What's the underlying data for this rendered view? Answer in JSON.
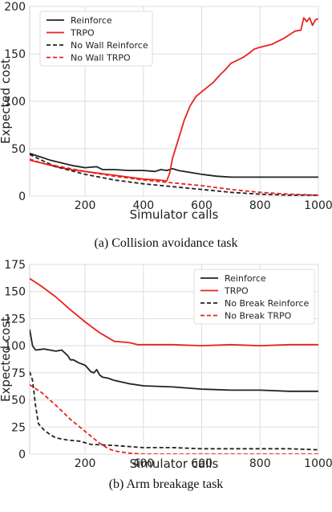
{
  "chart_data": [
    {
      "type": "line",
      "caption": "(a) Collision avoidance task",
      "xlabel": "Simulator calls",
      "ylabel": "Expected cost",
      "xlim": [
        10,
        1000
      ],
      "ylim": [
        0,
        200
      ],
      "xticks": [
        200,
        400,
        600,
        800,
        1000
      ],
      "yticks": [
        0,
        50,
        100,
        150,
        200
      ],
      "grid": true,
      "legend_position": "top-left",
      "series": [
        {
          "name": "Reinforce",
          "color": "#222222",
          "dash": "solid",
          "x": [
            10,
            40,
            80,
            120,
            160,
            200,
            240,
            260,
            300,
            350,
            400,
            440,
            460,
            480,
            500,
            520,
            560,
            600,
            650,
            700,
            800,
            900,
            1000
          ],
          "y": [
            45,
            42,
            38,
            35,
            32,
            30,
            31,
            28,
            28,
            27,
            27,
            26,
            28,
            27,
            29,
            27,
            25,
            23,
            21,
            20,
            20,
            20,
            20
          ]
        },
        {
          "name": "TRPO",
          "color": "#e8231e",
          "dash": "solid",
          "x": [
            10,
            50,
            100,
            150,
            200,
            250,
            300,
            350,
            400,
            450,
            480,
            490,
            500,
            520,
            540,
            560,
            580,
            600,
            620,
            640,
            660,
            680,
            700,
            720,
            740,
            760,
            780,
            800,
            840,
            880,
            900,
            920,
            940,
            950,
            960,
            970,
            980,
            990,
            1000
          ],
          "y": [
            38,
            35,
            31,
            28,
            26,
            24,
            22,
            20,
            18,
            17,
            16,
            24,
            40,
            60,
            80,
            95,
            105,
            110,
            115,
            120,
            127,
            133,
            140,
            143,
            146,
            150,
            155,
            157,
            160,
            166,
            170,
            174,
            175,
            188,
            184,
            188,
            180,
            186,
            187
          ]
        },
        {
          "name": "No Wall Reinforce",
          "color": "#222222",
          "dash": "dashed",
          "x": [
            10,
            50,
            100,
            150,
            200,
            250,
            300,
            400,
            500,
            600,
            700,
            800,
            900,
            1000
          ],
          "y": [
            44,
            38,
            31,
            27,
            23,
            20,
            17,
            13,
            10,
            7,
            4,
            2,
            1,
            1
          ]
        },
        {
          "name": "No Wall TRPO",
          "color": "#e8231e",
          "dash": "dashed",
          "x": [
            10,
            50,
            100,
            150,
            200,
            300,
            400,
            500,
            600,
            700,
            800,
            900,
            1000
          ],
          "y": [
            39,
            35,
            32,
            29,
            26,
            21,
            17,
            14,
            11,
            7,
            4,
            2,
            1
          ]
        }
      ]
    },
    {
      "type": "line",
      "caption": "(b) Arm breakage task",
      "xlabel": "Simulator calls",
      "ylabel": "Expected cost",
      "xlim": [
        10,
        1000
      ],
      "ylim": [
        0,
        175
      ],
      "xticks": [
        200,
        400,
        600,
        800,
        1000
      ],
      "yticks": [
        0,
        25,
        50,
        75,
        100,
        125,
        150,
        175
      ],
      "grid": true,
      "legend_position": "top-right",
      "series": [
        {
          "name": "Reinforce",
          "color": "#222222",
          "dash": "solid",
          "x": [
            10,
            20,
            30,
            60,
            100,
            120,
            140,
            150,
            160,
            180,
            200,
            220,
            230,
            240,
            250,
            260,
            280,
            300,
            350,
            400,
            500,
            600,
            700,
            800,
            900,
            1000
          ],
          "y": [
            115,
            100,
            96,
            97,
            95,
            96,
            91,
            87,
            87,
            84,
            82,
            76,
            75,
            78,
            73,
            71,
            70,
            68,
            65,
            63,
            62,
            60,
            59,
            59,
            58,
            58
          ]
        },
        {
          "name": "TRPO",
          "color": "#e8231e",
          "dash": "solid",
          "x": [
            10,
            50,
            100,
            150,
            200,
            250,
            300,
            350,
            380,
            400,
            500,
            600,
            700,
            800,
            900,
            1000
          ],
          "y": [
            162,
            155,
            145,
            133,
            122,
            112,
            104,
            103,
            101,
            101,
            101,
            100,
            101,
            100,
            101,
            101
          ]
        },
        {
          "name": "No Break Reinforce",
          "color": "#222222",
          "dash": "dashed",
          "x": [
            10,
            20,
            30,
            40,
            60,
            80,
            100,
            140,
            180,
            220,
            300,
            400,
            500,
            600,
            700,
            800,
            900,
            1000
          ],
          "y": [
            76,
            68,
            45,
            28,
            22,
            18,
            15,
            13,
            12,
            9,
            8,
            6,
            6,
            5,
            5,
            5,
            5,
            4
          ]
        },
        {
          "name": "No Break TRPO",
          "color": "#e8231e",
          "dash": "dashed",
          "x": [
            10,
            50,
            100,
            150,
            200,
            250,
            280,
            300,
            350,
            400,
            500,
            600,
            700,
            800,
            900,
            1000
          ],
          "y": [
            64,
            57,
            45,
            32,
            21,
            10,
            5,
            3,
            1,
            0,
            0,
            0,
            0,
            0,
            0,
            0
          ]
        }
      ]
    }
  ]
}
